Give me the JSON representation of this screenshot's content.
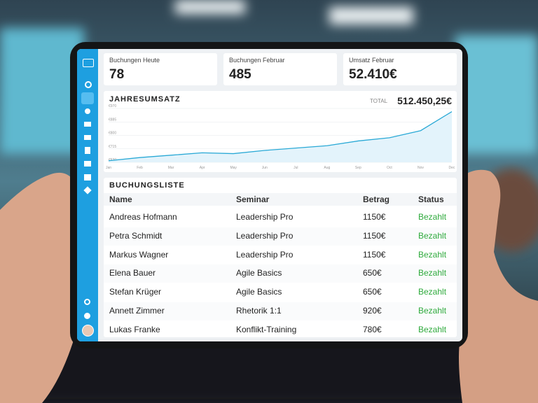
{
  "kpis": [
    {
      "label": "Buchungen Heute",
      "value": "78"
    },
    {
      "label": "Buchungen Februar",
      "value": "485"
    },
    {
      "label": "Umsatz Februar",
      "value": "52.410€"
    }
  ],
  "chart": {
    "type": "line",
    "title": "JAHRESUMSATZ",
    "total_label": "TOTAL",
    "total": "512.450,25€",
    "categories": [
      "Jan",
      "Feb",
      "Mar",
      "Apr",
      "May",
      "Jun",
      "Jul",
      "Aug",
      "Sep",
      "Oct",
      "Nov",
      "Dec"
    ],
    "values": [
      640,
      660,
      675,
      690,
      685,
      705,
      720,
      735,
      765,
      785,
      830,
      950
    ],
    "color": "#2aa9d6",
    "ylim": [
      630,
      970
    ],
    "yticks": [
      {
        "value": 630,
        "label": "€630"
      },
      {
        "value": 715,
        "label": "€715"
      },
      {
        "value": 800,
        "label": "€800"
      },
      {
        "value": 885,
        "label": "€885"
      },
      {
        "value": 970,
        "label": "€970"
      }
    ],
    "grid": true
  },
  "table": {
    "title": "BUCHUNGSLISTE",
    "headers": [
      "Name",
      "Seminar",
      "Betrag",
      "Status"
    ],
    "rows": [
      [
        "Andreas Hofmann",
        "Leadership Pro",
        "1150€",
        "Bezahlt"
      ],
      [
        "Petra Schmidt",
        "Leadership Pro",
        "1150€",
        "Bezahlt"
      ],
      [
        "Markus Wagner",
        "Leadership Pro",
        "1150€",
        "Bezahlt"
      ],
      [
        "Elena Bauer",
        "Agile Basics",
        "650€",
        "Bezahlt"
      ],
      [
        "Stefan Krüger",
        "Agile Basics",
        "650€",
        "Bezahlt"
      ],
      [
        "Annett Zimmer",
        "Rhetorik 1:1",
        "920€",
        "Bezahlt"
      ],
      [
        "Lukas Franke",
        "Konflikt-Training",
        "780€",
        "Bezahlt"
      ]
    ]
  }
}
